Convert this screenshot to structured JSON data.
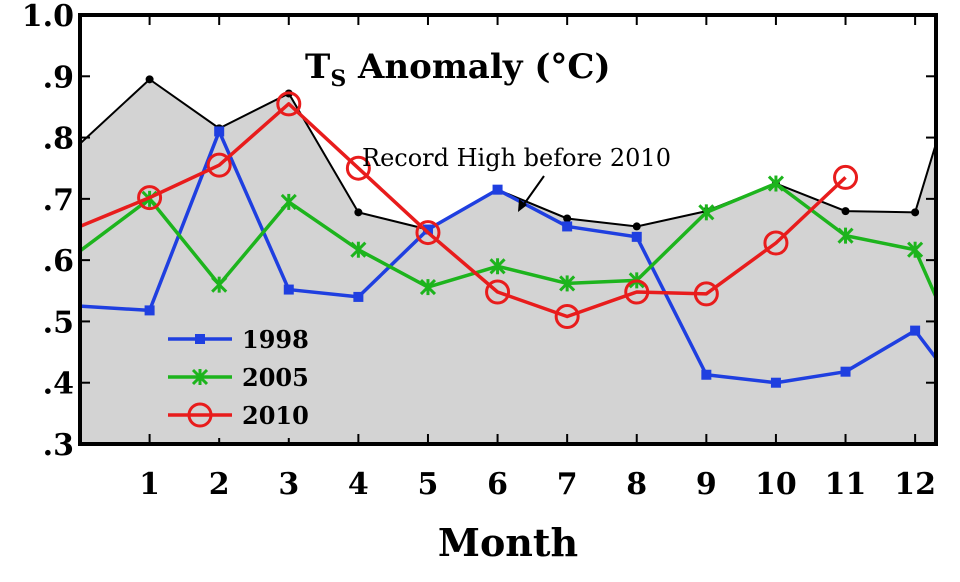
{
  "chart_data": {
    "type": "line",
    "title": "T",
    "title_subscript": "S",
    "title_rest": " Anomaly (°C)",
    "xlabel": "Month",
    "ylabel": "",
    "x": [
      1,
      2,
      3,
      4,
      5,
      6,
      7,
      8,
      9,
      10,
      11,
      12
    ],
    "x_tick_labels": [
      "1",
      "2",
      "3",
      "4",
      "5",
      "6",
      "7",
      "8",
      "9",
      "10",
      "11",
      "12"
    ],
    "y_tick_labels": [
      "1.0",
      ".9",
      ".8",
      ".7",
      ".6",
      ".5",
      ".4",
      ".3"
    ],
    "y_ticks": [
      1.0,
      0.9,
      0.8,
      0.7,
      0.6,
      0.5,
      0.4,
      0.3
    ],
    "xlim": [
      0,
      12.3
    ],
    "ylim": [
      0.3,
      1.0
    ],
    "record_high": {
      "x": [
        0,
        1,
        2,
        3,
        4,
        5,
        6,
        7,
        8,
        9,
        10,
        11,
        12,
        12.3
      ],
      "values": [
        0.79,
        0.895,
        0.815,
        0.872,
        0.678,
        0.65,
        0.715,
        0.668,
        0.655,
        0.68,
        0.725,
        0.68,
        0.678,
        0.79
      ],
      "fill_color": "#d3d3d3",
      "line_color": "#000000"
    },
    "annotation": "Record High before 2010",
    "series": [
      {
        "name": "1998",
        "color": "#1f3fe0",
        "marker": "square",
        "x": [
          0,
          1,
          2,
          3,
          4,
          5,
          6,
          7,
          8,
          9,
          10,
          11,
          12,
          12.3
        ],
        "values": [
          0.525,
          0.518,
          0.81,
          0.552,
          0.54,
          0.65,
          0.715,
          0.655,
          0.638,
          0.413,
          0.4,
          0.418,
          0.485,
          0.44
        ]
      },
      {
        "name": "2005",
        "color": "#1db41d",
        "marker": "star",
        "x": [
          0,
          1,
          2,
          3,
          4,
          5,
          6,
          7,
          8,
          9,
          10,
          11,
          12,
          12.3
        ],
        "values": [
          0.615,
          0.7,
          0.56,
          0.695,
          0.617,
          0.556,
          0.59,
          0.562,
          0.567,
          0.678,
          0.725,
          0.64,
          0.617,
          0.54
        ]
      },
      {
        "name": "2010",
        "color": "#e81c1c",
        "marker": "circle",
        "x": [
          0,
          1,
          2,
          3,
          4,
          5,
          6,
          7,
          8,
          9,
          10,
          11
        ],
        "values": [
          0.655,
          0.702,
          0.755,
          0.855,
          0.75,
          0.645,
          0.548,
          0.508,
          0.548,
          0.545,
          0.628,
          0.735
        ]
      }
    ],
    "legend_position": "bottom-left",
    "grid": false
  }
}
